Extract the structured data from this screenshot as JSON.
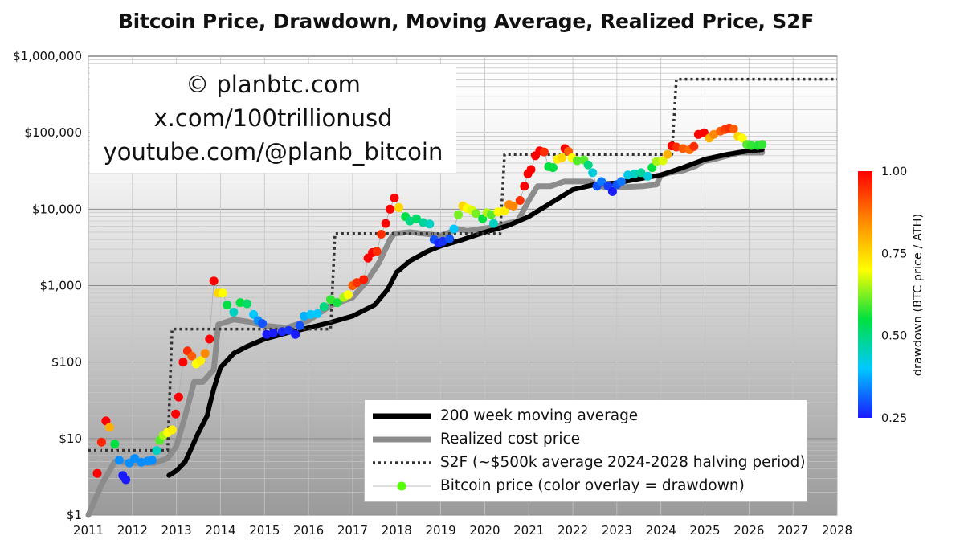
{
  "chart_data": {
    "type": "scatter",
    "title": "Bitcoin Price, Drawdown, Moving Average, Realized Price, S2F",
    "y_scale": "log",
    "x_range": [
      2011,
      2028
    ],
    "y_range": [
      1,
      1000000
    ],
    "x_ticks": [
      "2011",
      "2012",
      "2013",
      "2014",
      "2015",
      "2016",
      "2017",
      "2018",
      "2019",
      "2020",
      "2021",
      "2022",
      "2023",
      "2024",
      "2025",
      "2026",
      "2027",
      "2028"
    ],
    "y_ticks": [
      {
        "value": 1,
        "label": "$1"
      },
      {
        "value": 10,
        "label": "$10"
      },
      {
        "value": 100,
        "label": "$100"
      },
      {
        "value": 1000,
        "label": "$1,000"
      },
      {
        "value": 10000,
        "label": "$10,000"
      },
      {
        "value": 100000,
        "label": "$100,000"
      },
      {
        "value": 1000000,
        "label": "$1,000,000"
      }
    ],
    "legend_placement": "bottom-right",
    "watermark_lines": [
      "© planbtc.com",
      "x.com/100trillionusd",
      "youtube.com/@planb_bitcoin"
    ],
    "colorbar": {
      "label": "drawdown (BTC price / ATH)",
      "min": 0.25,
      "max": 1.0,
      "ticks": [
        {
          "value": 1.0,
          "label": "1.00"
        },
        {
          "value": 0.75,
          "label": "0.75"
        },
        {
          "value": 0.5,
          "label": "0.50"
        },
        {
          "value": 0.25,
          "label": "0.25"
        }
      ],
      "colors": [
        "#1a1aff",
        "#00c8ff",
        "#00e040",
        "#ffff00",
        "#ff8800",
        "#ff0000"
      ]
    },
    "series": [
      {
        "name": "200 week moving average",
        "style": "line",
        "color": "#000000",
        "x": [
          2012.83,
          2013.0,
          2013.2,
          2013.5,
          2013.7,
          2013.75,
          2013.85,
          2014.0,
          2014.3,
          2014.6,
          2015.0,
          2015.5,
          2016.0,
          2016.5,
          2017.0,
          2017.5,
          2017.8,
          2018.0,
          2018.3,
          2018.7,
          2019.0,
          2019.5,
          2020.0,
          2020.5,
          2021.0,
          2021.5,
          2022.0,
          2022.5,
          2023.0,
          2023.5,
          2024.0,
          2024.5,
          2025.0,
          2025.5,
          2026.0,
          2026.3
        ],
        "y": [
          3.3,
          3.8,
          5,
          12,
          20,
          27,
          45,
          85,
          130,
          160,
          200,
          240,
          280,
          330,
          400,
          560,
          900,
          1500,
          2100,
          2800,
          3300,
          4000,
          5000,
          6000,
          8000,
          12000,
          18000,
          21000,
          22000,
          25000,
          28000,
          35000,
          45000,
          52000,
          58000,
          60000
        ]
      },
      {
        "name": "Realized cost price",
        "style": "line",
        "color": "#8c8c8c",
        "x": [
          2011.0,
          2011.3,
          2011.6,
          2012.0,
          2012.5,
          2012.8,
          2013.0,
          2013.2,
          2013.4,
          2013.6,
          2013.85,
          2013.95,
          2014.3,
          2014.6,
          2015.0,
          2015.5,
          2016.0,
          2016.5,
          2017.0,
          2017.3,
          2017.6,
          2017.85,
          2017.95,
          2018.3,
          2018.6,
          2019.0,
          2019.4,
          2019.6,
          2019.9,
          2020.2,
          2020.5,
          2020.75,
          2021.0,
          2021.2,
          2021.5,
          2021.8,
          2022.0,
          2022.4,
          2022.6,
          2022.9,
          2023.2,
          2023.6,
          2023.9,
          2024.0,
          2024.2,
          2024.5,
          2024.8,
          2024.95,
          2025.2,
          2025.5,
          2025.8,
          2026.0,
          2026.3
        ],
        "y": [
          1,
          2.5,
          5,
          4.8,
          4.8,
          5.5,
          8,
          20,
          55,
          55,
          80,
          310,
          360,
          340,
          300,
          280,
          350,
          550,
          700,
          1100,
          2000,
          4000,
          4800,
          5000,
          4800,
          4500,
          5500,
          5200,
          5500,
          5800,
          6500,
          7000,
          13000,
          20000,
          20000,
          23000,
          23000,
          23000,
          20000,
          19000,
          19500,
          20000,
          21000,
          28000,
          30000,
          32000,
          37000,
          42000,
          45000,
          50000,
          55000,
          55000,
          55000
        ]
      },
      {
        "name": "S2F (~$500k average 2024-2028 halving period)",
        "style": "dotted",
        "color": "#333333",
        "x": [
          2011.0,
          2012.8,
          2012.9,
          2016.5,
          2016.6,
          2020.35,
          2020.45,
          2024.25,
          2024.35,
          2028.0
        ],
        "y": [
          7,
          7,
          270,
          270,
          4800,
          4800,
          52000,
          52000,
          500000,
          500000
        ]
      },
      {
        "name": "Bitcoin price (color overlay = drawdown)",
        "style": "markers",
        "points": [
          [
            2011.2,
            3.5,
            1.0
          ],
          [
            2011.3,
            9,
            0.96
          ],
          [
            2011.4,
            17,
            1.0
          ],
          [
            2011.48,
            14,
            0.8
          ],
          [
            2011.6,
            8.5,
            0.55
          ],
          [
            2011.7,
            5.2,
            0.35
          ],
          [
            2011.78,
            3.3,
            0.25
          ],
          [
            2011.85,
            2.9,
            0.25
          ],
          [
            2011.93,
            4.8,
            0.35
          ],
          [
            2012.05,
            5.5,
            0.35
          ],
          [
            2012.2,
            4.9,
            0.35
          ],
          [
            2012.35,
            5.1,
            0.35
          ],
          [
            2012.45,
            5.2,
            0.35
          ],
          [
            2012.55,
            7,
            0.45
          ],
          [
            2012.62,
            9.5,
            0.6
          ],
          [
            2012.7,
            11,
            0.65
          ],
          [
            2012.8,
            12,
            0.7
          ],
          [
            2012.9,
            13,
            0.72
          ],
          [
            2012.98,
            21,
            1.0
          ],
          [
            2013.05,
            35,
            1.0
          ],
          [
            2013.15,
            100,
            1.0
          ],
          [
            2013.25,
            140,
            0.95
          ],
          [
            2013.35,
            120,
            0.9
          ],
          [
            2013.45,
            95,
            0.7
          ],
          [
            2013.55,
            105,
            0.72
          ],
          [
            2013.65,
            130,
            0.85
          ],
          [
            2013.75,
            200,
            1.0
          ],
          [
            2013.85,
            1150,
            1.0
          ],
          [
            2013.95,
            800,
            0.75
          ],
          [
            2014.05,
            800,
            0.7
          ],
          [
            2014.15,
            560,
            0.55
          ],
          [
            2014.3,
            450,
            0.45
          ],
          [
            2014.45,
            600,
            0.55
          ],
          [
            2014.6,
            580,
            0.52
          ],
          [
            2014.75,
            420,
            0.4
          ],
          [
            2014.85,
            350,
            0.35
          ],
          [
            2014.95,
            320,
            0.3
          ],
          [
            2015.05,
            230,
            0.25
          ],
          [
            2015.2,
            240,
            0.25
          ],
          [
            2015.4,
            250,
            0.26
          ],
          [
            2015.55,
            260,
            0.27
          ],
          [
            2015.7,
            230,
            0.25
          ],
          [
            2015.8,
            300,
            0.3
          ],
          [
            2015.9,
            400,
            0.38
          ],
          [
            2016.05,
            420,
            0.4
          ],
          [
            2016.2,
            430,
            0.4
          ],
          [
            2016.35,
            530,
            0.5
          ],
          [
            2016.5,
            660,
            0.58
          ],
          [
            2016.65,
            600,
            0.56
          ],
          [
            2016.8,
            700,
            0.65
          ],
          [
            2016.9,
            760,
            0.7
          ],
          [
            2017.0,
            1000,
            0.9
          ],
          [
            2017.1,
            1100,
            0.95
          ],
          [
            2017.25,
            1200,
            0.97
          ],
          [
            2017.35,
            2300,
            1.0
          ],
          [
            2017.45,
            2700,
            1.0
          ],
          [
            2017.55,
            2800,
            0.95
          ],
          [
            2017.65,
            4700,
            0.95
          ],
          [
            2017.75,
            6500,
            1.0
          ],
          [
            2017.85,
            10000,
            1.0
          ],
          [
            2017.95,
            14000,
            1.0
          ],
          [
            2018.05,
            10500,
            0.75
          ],
          [
            2018.2,
            8000,
            0.55
          ],
          [
            2018.3,
            7000,
            0.5
          ],
          [
            2018.45,
            7500,
            0.52
          ],
          [
            2018.6,
            6700,
            0.48
          ],
          [
            2018.75,
            6400,
            0.45
          ],
          [
            2018.85,
            4000,
            0.3
          ],
          [
            2018.95,
            3600,
            0.26
          ],
          [
            2019.05,
            3800,
            0.27
          ],
          [
            2019.2,
            4100,
            0.3
          ],
          [
            2019.3,
            5500,
            0.4
          ],
          [
            2019.4,
            8500,
            0.62
          ],
          [
            2019.5,
            11000,
            0.75
          ],
          [
            2019.6,
            10300,
            0.7
          ],
          [
            2019.7,
            9800,
            0.68
          ],
          [
            2019.8,
            8800,
            0.62
          ],
          [
            2019.95,
            7500,
            0.55
          ],
          [
            2020.05,
            9000,
            0.65
          ],
          [
            2020.15,
            8500,
            0.6
          ],
          [
            2020.2,
            6500,
            0.45
          ],
          [
            2020.3,
            9200,
            0.7
          ],
          [
            2020.45,
            9500,
            0.72
          ],
          [
            2020.55,
            11500,
            0.85
          ],
          [
            2020.65,
            11000,
            0.85
          ],
          [
            2020.8,
            13000,
            0.95
          ],
          [
            2020.9,
            20000,
            1.0
          ],
          [
            2020.98,
            29000,
            1.0
          ],
          [
            2021.05,
            33000,
            1.0
          ],
          [
            2021.15,
            50000,
            1.0
          ],
          [
            2021.25,
            58000,
            1.0
          ],
          [
            2021.35,
            56000,
            0.95
          ],
          [
            2021.45,
            36000,
            0.55
          ],
          [
            2021.55,
            35000,
            0.55
          ],
          [
            2021.65,
            45000,
            0.72
          ],
          [
            2021.75,
            47000,
            0.75
          ],
          [
            2021.82,
            62000,
            1.0
          ],
          [
            2021.9,
            57000,
            0.9
          ],
          [
            2021.98,
            47000,
            0.7
          ],
          [
            2022.1,
            43000,
            0.6
          ],
          [
            2022.25,
            44000,
            0.6
          ],
          [
            2022.35,
            38000,
            0.5
          ],
          [
            2022.45,
            30000,
            0.43
          ],
          [
            2022.55,
            20000,
            0.3
          ],
          [
            2022.65,
            23000,
            0.33
          ],
          [
            2022.8,
            20000,
            0.28
          ],
          [
            2022.9,
            17000,
            0.25
          ],
          [
            2023.0,
            21000,
            0.3
          ],
          [
            2023.1,
            23000,
            0.33
          ],
          [
            2023.25,
            28000,
            0.42
          ],
          [
            2023.4,
            29000,
            0.45
          ],
          [
            2023.55,
            30000,
            0.48
          ],
          [
            2023.7,
            27000,
            0.43
          ],
          [
            2023.8,
            35000,
            0.55
          ],
          [
            2023.9,
            42000,
            0.65
          ],
          [
            2024.05,
            43000,
            0.68
          ],
          [
            2024.15,
            52000,
            0.8
          ],
          [
            2024.25,
            67000,
            1.0
          ],
          [
            2024.35,
            65000,
            0.95
          ],
          [
            2024.5,
            62000,
            0.9
          ],
          [
            2024.65,
            60000,
            0.88
          ],
          [
            2024.75,
            66000,
            0.95
          ],
          [
            2024.85,
            95000,
            1.0
          ],
          [
            2024.98,
            100000,
            1.0
          ],
          [
            2025.1,
            85000,
            0.8
          ],
          [
            2025.2,
            95000,
            0.85
          ],
          [
            2025.35,
            105000,
            0.9
          ],
          [
            2025.45,
            110000,
            0.93
          ],
          [
            2025.55,
            115000,
            0.95
          ],
          [
            2025.65,
            112000,
            0.9
          ],
          [
            2025.75,
            90000,
            0.75
          ],
          [
            2025.85,
            85000,
            0.7
          ],
          [
            2025.95,
            70000,
            0.6
          ],
          [
            2026.05,
            68000,
            0.58
          ],
          [
            2026.2,
            68000,
            0.57
          ],
          [
            2026.3,
            70000,
            0.58
          ]
        ]
      }
    ]
  }
}
